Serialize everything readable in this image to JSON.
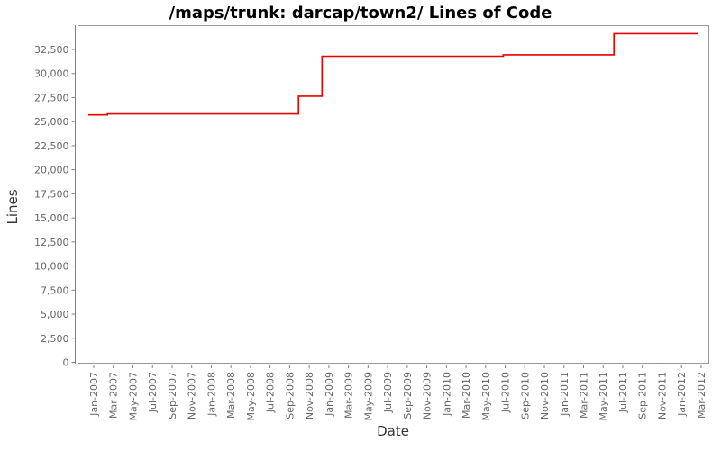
{
  "chart": {
    "title": "/maps/trunk: darcap/town2/ Lines of Code",
    "xlabel": "Date",
    "ylabel": "Lines",
    "colors": {
      "line": "#e60000",
      "plot_border": "#999999",
      "axis": "#808080",
      "tick_text": "#666666",
      "axis_title_text": "#333333",
      "title_text": "#000000",
      "background": "#ffffff"
    }
  },
  "chart_data": {
    "type": "line",
    "line_style": "step-after",
    "title": "/maps/trunk: darcap/town2/ Lines of Code",
    "xlabel": "Date",
    "ylabel": "Lines",
    "grid": false,
    "legend": false,
    "ylim": [
      0,
      35000
    ],
    "y_ticks": [
      0,
      2500,
      5000,
      7500,
      10000,
      12500,
      15000,
      17500,
      20000,
      22500,
      25000,
      27500,
      30000,
      32500
    ],
    "x_tick_interval_months": 2,
    "x_tick_labels": [
      "Jan-2007",
      "Mar-2007",
      "May-2007",
      "Jul-2007",
      "Sep-2007",
      "Nov-2007",
      "Jan-2008",
      "Mar-2008",
      "May-2008",
      "Jul-2008",
      "Sep-2008",
      "Nov-2008",
      "Jan-2009",
      "Mar-2009",
      "May-2009",
      "Jul-2009",
      "Sep-2009",
      "Nov-2009",
      "Jan-2010",
      "Mar-2010",
      "May-2010",
      "Jul-2010",
      "Sep-2010",
      "Nov-2010",
      "Jan-2011",
      "Mar-2011",
      "May-2011",
      "Jul-2011",
      "Sep-2011",
      "Nov-2011",
      "Jan-2012",
      "Mar-2012"
    ],
    "series": [
      {
        "name": "Lines of Code",
        "color": "#e60000",
        "t_unit": "months since Jan-2007",
        "points": [
          {
            "date": "Dec-2006",
            "t": -0.55,
            "lines": 25700
          },
          {
            "date": "Feb-2007",
            "t": 1.4,
            "lines": 25800
          },
          {
            "date": "Oct-2008",
            "t": 20.9,
            "lines": 27650
          },
          {
            "date": "Dec-2008",
            "t": 23.3,
            "lines": 31800
          },
          {
            "date": "Jun-2010",
            "t": 41.8,
            "lines": 31950
          },
          {
            "date": "Jun-2011",
            "t": 53.1,
            "lines": 34150
          },
          {
            "date": "Feb-2012",
            "t": 61.7,
            "lines": 34150
          }
        ]
      }
    ]
  }
}
